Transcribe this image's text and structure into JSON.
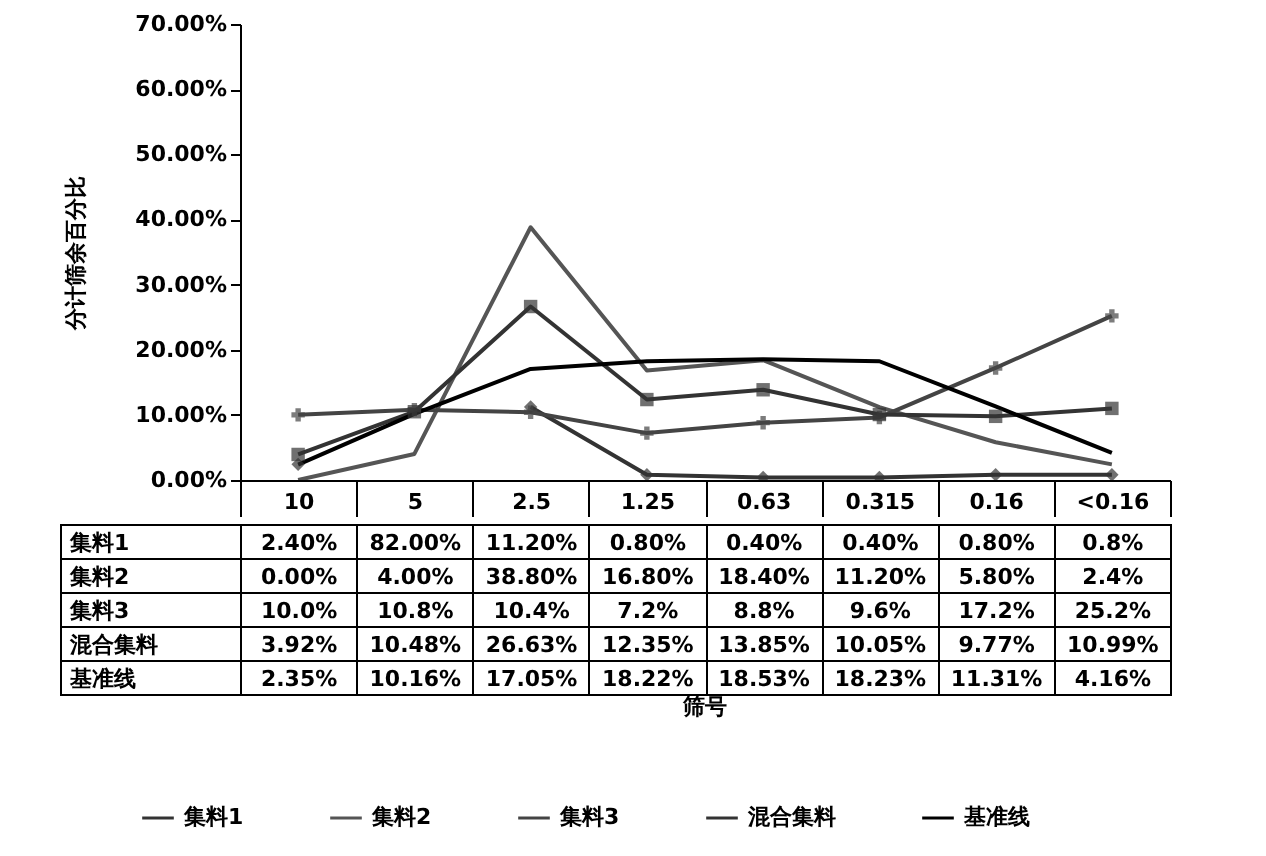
{
  "chart_data": {
    "type": "line",
    "ylabel": "分计筛余百分比",
    "annotations": [
      "筛号"
    ],
    "categories": [
      "10",
      "5",
      "2.5",
      "1.25",
      "0.63",
      "0.315",
      "0.16",
      "<0.16"
    ],
    "ylim": [
      0,
      70
    ],
    "yticks": [
      {
        "value": 0,
        "label": "0.00%"
      },
      {
        "value": 10,
        "label": "10.00%"
      },
      {
        "value": 20,
        "label": "20.00%"
      },
      {
        "value": 30,
        "label": "30.00%"
      },
      {
        "value": 40,
        "label": "40.00%"
      },
      {
        "value": 50,
        "label": "50.00%"
      },
      {
        "value": 60,
        "label": "60.00%"
      },
      {
        "value": 70,
        "label": "70.00%"
      }
    ],
    "legend": "bottom",
    "series": [
      {
        "name": "集料1",
        "color": "#333333",
        "marker": "diamond",
        "values": [
          2.4,
          null,
          11.2,
          0.8,
          0.4,
          0.4,
          0.8,
          0.8
        ],
        "value_labels": [
          "2.40%",
          "82.00%",
          "11.20%",
          "0.80%",
          "0.40%",
          "0.40%",
          "0.80%",
          "0.8%"
        ]
      },
      {
        "name": "集料2",
        "color": "#555555",
        "marker": "none",
        "values": [
          0,
          4,
          38.8,
          16.8,
          18.4,
          11.2,
          5.8,
          2.4
        ],
        "value_labels": [
          "0.00%",
          "4.00%",
          "38.80%",
          "16.80%",
          "18.40%",
          "11.20%",
          "5.80%",
          "2.4%"
        ]
      },
      {
        "name": "集料3",
        "color": "#444444",
        "marker": "cross",
        "values": [
          10,
          10.8,
          10.4,
          7.2,
          8.8,
          9.6,
          17.2,
          25.2
        ],
        "value_labels": [
          "10.0%",
          "10.8%",
          "10.4%",
          "7.2%",
          "8.8%",
          "9.6%",
          "17.2%",
          "25.2%"
        ]
      },
      {
        "name": "混合集料",
        "color": "#333333",
        "marker": "square",
        "values": [
          3.92,
          10.48,
          26.63,
          12.35,
          13.85,
          10.05,
          9.77,
          10.99
        ],
        "value_labels": [
          "3.92%",
          "10.48%",
          "26.63%",
          "12.35%",
          "13.85%",
          "10.05%",
          "9.77%",
          "10.99%"
        ]
      },
      {
        "name": "基准线",
        "color": "#000000",
        "marker": "none",
        "values": [
          2.35,
          10.16,
          17.05,
          18.22,
          18.53,
          18.23,
          11.31,
          4.16
        ],
        "value_labels": [
          "2.35%",
          "10.16%",
          "17.05%",
          "18.22%",
          "18.53%",
          "18.23%",
          "11.31%",
          "4.16%"
        ]
      }
    ]
  }
}
